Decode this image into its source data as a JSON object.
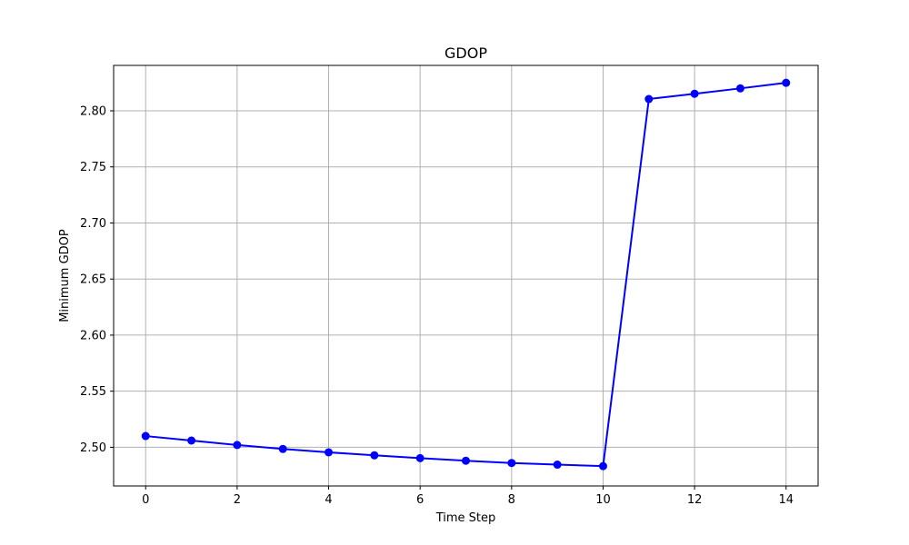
{
  "chart_data": {
    "type": "line",
    "title": "GDOP",
    "xlabel": "Time Step",
    "ylabel": "Minimum GDOP",
    "xlim": [
      -0.7,
      14.7
    ],
    "ylim": [
      2.4655,
      2.8405
    ],
    "x_ticks": [
      0,
      2,
      4,
      6,
      8,
      10,
      12,
      14
    ],
    "x_tick_labels": [
      "0",
      "2",
      "4",
      "6",
      "8",
      "10",
      "12",
      "14"
    ],
    "y_ticks": [
      2.5,
      2.55,
      2.6,
      2.65,
      2.7,
      2.75,
      2.8
    ],
    "y_tick_labels": [
      "2.50",
      "2.55",
      "2.60",
      "2.65",
      "2.70",
      "2.75",
      "2.80"
    ],
    "grid": true,
    "series": [
      {
        "color": "#0000ff",
        "marker": "circle",
        "x": [
          0,
          1,
          2,
          3,
          4,
          5,
          6,
          7,
          8,
          9,
          10,
          11,
          12,
          13,
          14
        ],
        "y": [
          2.51,
          2.506,
          2.502,
          2.4985,
          2.4955,
          2.4928,
          2.4903,
          2.488,
          2.486,
          2.4845,
          2.4832,
          2.8105,
          2.8152,
          2.82,
          2.825
        ]
      }
    ]
  }
}
